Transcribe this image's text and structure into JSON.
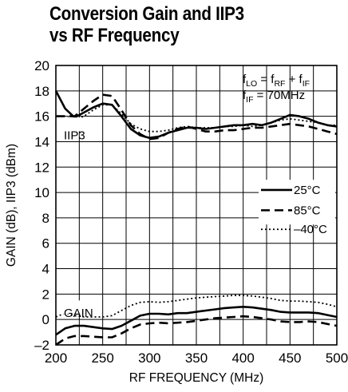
{
  "chart_data": {
    "type": "line",
    "title_line1": "Conversion Gain and IIP3",
    "title_line2": "vs RF Frequency",
    "xlabel": "RF FREQUENCY (MHz)",
    "ylabel": "GAIN (dB), IIP3 (dBm)",
    "xlim": [
      200,
      500
    ],
    "ylim": [
      -2,
      20
    ],
    "x_ticks": [
      200,
      250,
      300,
      350,
      400,
      450,
      500
    ],
    "y_ticks": [
      -2,
      0,
      2,
      4,
      6,
      8,
      10,
      12,
      14,
      16,
      18,
      20
    ],
    "grid": true,
    "annotations": {
      "flo": {
        "f1": "f",
        "s1": "LO",
        "eq": " = f",
        "s2": "RF",
        "plus": " + f",
        "s3": "IF"
      },
      "fif": {
        "f1": "f",
        "s1": "IF",
        "eq": " = 70MHz"
      },
      "iip3_label": "IIP3",
      "gain_label": "GAIN"
    },
    "legend": {
      "placement": "right",
      "entries": [
        {
          "label": "25°C",
          "style": "solid"
        },
        {
          "label": "85°C",
          "style": "dashed"
        },
        {
          "label": "–40°C",
          "style": "dotted"
        }
      ]
    },
    "series": [
      {
        "group": "IIP3",
        "style": "solid",
        "x": [
          200,
          210,
          220,
          230,
          240,
          250,
          260,
          270,
          280,
          290,
          300,
          310,
          320,
          330,
          340,
          350,
          360,
          370,
          380,
          390,
          400,
          410,
          420,
          430,
          440,
          450,
          460,
          470,
          480,
          490,
          500
        ],
        "y": [
          18,
          16.6,
          15.9,
          16.3,
          16.7,
          17,
          16.9,
          16,
          15,
          14.5,
          14.3,
          14.4,
          14.7,
          14.9,
          15.1,
          15.1,
          15,
          15.1,
          15.2,
          15.3,
          15.3,
          15.4,
          15.3,
          15.5,
          15.8,
          16.1,
          16,
          15.8,
          15.5,
          15.3,
          15.2
        ]
      },
      {
        "group": "IIP3",
        "style": "dashed",
        "x": [
          200,
          210,
          220,
          230,
          240,
          250,
          260,
          270,
          280,
          290,
          300,
          310,
          320,
          330,
          340,
          350,
          360,
          370,
          380,
          390,
          400,
          410,
          420,
          430,
          440,
          450,
          460,
          470,
          480,
          490,
          500
        ],
        "y": [
          16,
          16,
          16,
          16.6,
          17.2,
          17.7,
          17.6,
          16.5,
          15.3,
          14.6,
          14.2,
          14.3,
          14.7,
          15,
          15.2,
          15,
          14.8,
          14.8,
          14.9,
          14.9,
          15,
          15.1,
          15.1,
          15.2,
          15.3,
          15.4,
          15.3,
          15.2,
          15,
          14.8,
          14.6
        ]
      },
      {
        "group": "IIP3",
        "style": "dotted",
        "x": [
          200,
          210,
          220,
          230,
          240,
          250,
          260,
          270,
          280,
          290,
          300,
          310,
          320,
          330,
          340,
          350,
          360,
          370,
          380,
          390,
          400,
          410,
          420,
          430,
          440,
          450,
          460,
          470,
          480,
          490,
          500
        ],
        "y": [
          16,
          16,
          15.6,
          16,
          16.5,
          16.9,
          16.9,
          16.2,
          15.4,
          15,
          14.8,
          14.8,
          14.9,
          15.1,
          15.2,
          15.1,
          15.1,
          15.1,
          15.2,
          15.2,
          15.3,
          15.2,
          15.3,
          15.5,
          15.7,
          15.8,
          15.7,
          15.6,
          15.5,
          15.3,
          15.3
        ]
      },
      {
        "group": "GAIN",
        "style": "solid",
        "x": [
          200,
          210,
          220,
          230,
          240,
          250,
          260,
          270,
          280,
          290,
          300,
          310,
          320,
          330,
          340,
          350,
          360,
          370,
          380,
          390,
          400,
          410,
          420,
          430,
          440,
          450,
          460,
          470,
          480,
          490,
          500
        ],
        "y": [
          -1.2,
          -0.7,
          -0.5,
          -0.5,
          -0.6,
          -0.7,
          -0.75,
          -0.5,
          -0.1,
          0.3,
          0.45,
          0.45,
          0.4,
          0.5,
          0.5,
          0.6,
          0.7,
          0.8,
          0.9,
          0.95,
          1,
          0.95,
          0.85,
          0.75,
          0.6,
          0.55,
          0.55,
          0.55,
          0.5,
          0.35,
          0.2
        ]
      },
      {
        "group": "GAIN",
        "style": "dashed",
        "x": [
          200,
          210,
          220,
          230,
          240,
          250,
          260,
          270,
          280,
          290,
          300,
          310,
          320,
          330,
          340,
          350,
          360,
          370,
          380,
          390,
          400,
          410,
          420,
          430,
          440,
          450,
          460,
          470,
          480,
          490,
          500
        ],
        "y": [
          -2,
          -1.5,
          -1.3,
          -1.3,
          -1.35,
          -1.4,
          -1.4,
          -1.1,
          -0.7,
          -0.4,
          -0.3,
          -0.25,
          -0.3,
          -0.25,
          -0.2,
          -0.1,
          0,
          0.1,
          0.15,
          0.2,
          0.25,
          0.2,
          0.1,
          0,
          -0.15,
          -0.2,
          -0.2,
          -0.15,
          -0.2,
          -0.35,
          -0.5
        ]
      },
      {
        "group": "GAIN",
        "style": "dotted",
        "x": [
          200,
          210,
          220,
          230,
          240,
          250,
          260,
          270,
          280,
          290,
          300,
          310,
          320,
          330,
          340,
          350,
          360,
          370,
          380,
          390,
          400,
          410,
          420,
          430,
          440,
          450,
          460,
          470,
          480,
          490,
          500
        ],
        "y": [
          0.2,
          0.5,
          0.3,
          0.2,
          0.2,
          0.2,
          0.3,
          0.7,
          1.1,
          1.35,
          1.4,
          1.35,
          1.4,
          1.5,
          1.6,
          1.7,
          1.75,
          1.8,
          1.85,
          1.9,
          1.9,
          1.85,
          1.75,
          1.65,
          1.5,
          1.45,
          1.45,
          1.4,
          1.35,
          1.2,
          1.0
        ]
      }
    ]
  }
}
